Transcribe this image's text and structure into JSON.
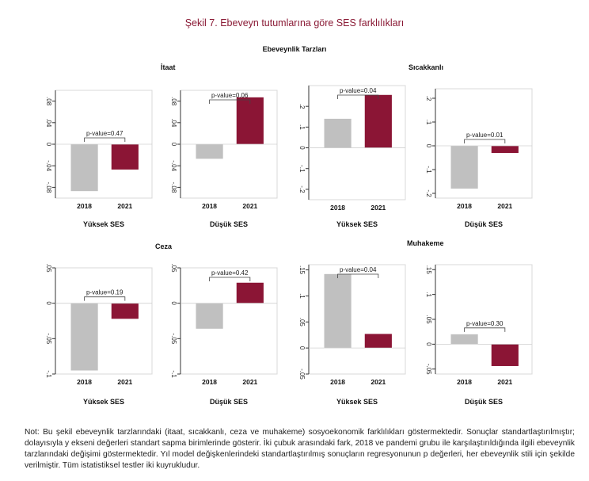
{
  "figure_title": "Şekil 7. Ebeveyn tutumlarına göre SES farklılıkları",
  "subtitle": "Ebeveynlik Tarzları",
  "groups": {
    "itaat": "İtaat",
    "sicakkanli": "Sıcakkanlı",
    "ceza": "Ceza",
    "muhakeme": "Muhakeme"
  },
  "note": {
    "prefix": "Not:",
    "text": "Bu şekil ebeveynlik tarzlarındaki (itaat, sıcakkanlı, ceza ve muhakeme) sosyoekonomik farklılıkları göstermektedir. Sonuçlar standartlaştırılmıştır; dolayısıyla y ekseni değerleri standart sapma birimlerinde gösterir. İki çubuk arasındaki fark, 2018 ve pandemi grubu ile karşılaştırıldığında ilgili ebeveynlik tarzlarındaki değişimi göstermektedir. Yıl model değişkenlerindeki standartlaştırılmış sonuçların regresyonunun p değerleri, her ebeveynlik stili için şekilde verilmiştir. Tüm istatistiksel testler iki kuyrukludur."
  },
  "colors": {
    "bar_2018": "#c0c0c0",
    "bar_2021": "#8b1535",
    "title": "#8a1a35"
  },
  "chart_data": [
    {
      "type": "bar",
      "group": "İtaat",
      "xlabel": "Yüksek SES",
      "categories": [
        "2018",
        "2021"
      ],
      "values": [
        -0.087,
        -0.047
      ],
      "ylim": [
        -0.1,
        0.1
      ],
      "yticks": [
        -0.08,
        -0.04,
        0,
        0.04,
        0.08
      ],
      "ytick_labels": [
        "-.08",
        "-.04",
        "0",
        ".04",
        ".08"
      ],
      "pvalue": "p-value=0.47"
    },
    {
      "type": "bar",
      "group": "İtaat",
      "xlabel": "Düşük SES",
      "categories": [
        "2018",
        "2021"
      ],
      "values": [
        -0.027,
        0.087
      ],
      "ylim": [
        -0.1,
        0.1
      ],
      "yticks": [
        -0.08,
        -0.04,
        0,
        0.04,
        0.08
      ],
      "ytick_labels": [
        "-.08",
        "-.04",
        "0",
        ".04",
        ".08"
      ],
      "pvalue": "p-value=0.06"
    },
    {
      "type": "bar",
      "group": "Sıcakkanlı",
      "xlabel": "Yüksek SES",
      "categories": [
        "2018",
        "2021"
      ],
      "values": [
        0.14,
        0.255
      ],
      "ylim": [
        -0.25,
        0.3
      ],
      "yticks": [
        -0.2,
        -0.1,
        0,
        0.1,
        0.2
      ],
      "ytick_labels": [
        "-.2",
        "-.1",
        "0",
        ".1",
        ".2"
      ],
      "pvalue": "p-value=0.04"
    },
    {
      "type": "bar",
      "group": "Sıcakkanlı",
      "xlabel": "Düşük SES",
      "categories": [
        "2018",
        "2021"
      ],
      "values": [
        -0.18,
        -0.03
      ],
      "ylim": [
        -0.22,
        0.24
      ],
      "yticks": [
        -0.2,
        -0.1,
        0,
        0.1,
        0.2
      ],
      "ytick_labels": [
        "-.2",
        "-.1",
        "0",
        ".1",
        ".2"
      ],
      "pvalue": "p-value=0.01"
    },
    {
      "type": "bar",
      "group": "Ceza",
      "xlabel": "Yüksek SES",
      "categories": [
        "2018",
        "2021"
      ],
      "values": [
        -0.095,
        -0.022
      ],
      "ylim": [
        -0.1,
        0.05
      ],
      "yticks": [
        -0.1,
        -0.05,
        0,
        0.05
      ],
      "ytick_labels": [
        "-.1",
        "-.05",
        "0",
        ".05"
      ],
      "pvalue": "p-value=0.19"
    },
    {
      "type": "bar",
      "group": "Ceza",
      "xlabel": "Düşük SES",
      "categories": [
        "2018",
        "2021"
      ],
      "values": [
        -0.036,
        0.029
      ],
      "ylim": [
        -0.1,
        0.05
      ],
      "yticks": [
        -0.1,
        -0.05,
        0,
        0.05
      ],
      "ytick_labels": [
        "-.1",
        "-.05",
        "0",
        ".05"
      ],
      "pvalue": "p-value=0.42"
    },
    {
      "type": "bar",
      "group": "Muhakeme",
      "xlabel": "Yüksek SES",
      "categories": [
        "2018",
        "2021"
      ],
      "values": [
        0.142,
        0.027
      ],
      "ylim": [
        -0.05,
        0.16
      ],
      "yticks": [
        -0.05,
        0,
        0.05,
        0.1,
        0.15
      ],
      "ytick_labels": [
        "-.05",
        "0",
        ".05",
        ".1",
        ".15"
      ],
      "pvalue": "p-value=0.04"
    },
    {
      "type": "bar",
      "group": "Muhakeme",
      "xlabel": "Düşük SES",
      "categories": [
        "2018",
        "2021"
      ],
      "values": [
        0.02,
        -0.044
      ],
      "ylim": [
        -0.06,
        0.16
      ],
      "yticks": [
        -0.05,
        0,
        0.05,
        0.1,
        0.15
      ],
      "ytick_labels": [
        "-.05",
        "0",
        ".05",
        ".1",
        ".15"
      ],
      "pvalue": "p-value=0.30"
    }
  ]
}
